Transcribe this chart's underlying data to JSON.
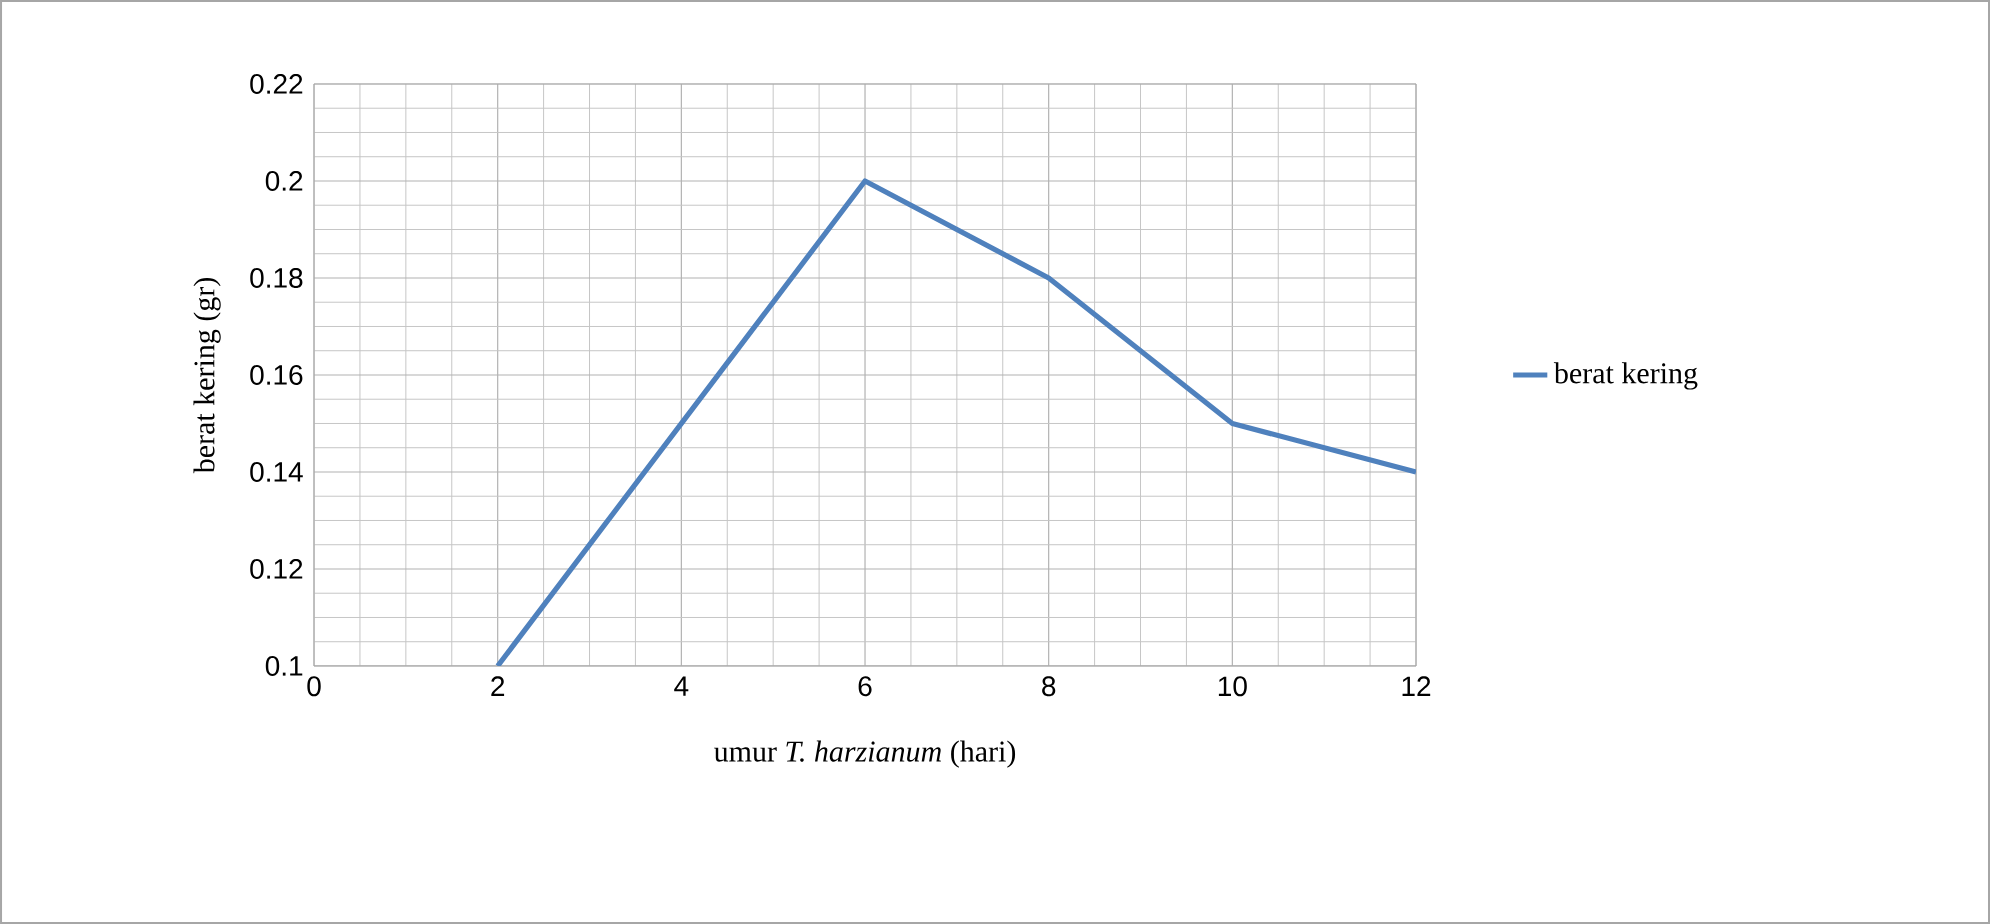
{
  "chart_data": {
    "type": "line",
    "xlabel": "umur *T. harzianum* (hari)",
    "ylabel": "berat kering (gr)",
    "x": [
      2,
      4,
      6,
      8,
      10,
      12
    ],
    "series": [
      {
        "name": "berat kering",
        "color": "#4f81bd",
        "values": [
          0.1,
          0.15,
          0.2,
          0.18,
          0.15,
          0.14
        ]
      }
    ],
    "xlim": [
      0,
      12
    ],
    "ylim": [
      0.1,
      0.22
    ],
    "xticks": [
      0,
      2,
      4,
      6,
      8,
      10,
      12
    ],
    "yticks": [
      0.1,
      0.12,
      0.14,
      0.16,
      0.18,
      0.2,
      0.22
    ],
    "grid": true,
    "legend": "right",
    "marker": "none",
    "line_style": "solid"
  }
}
